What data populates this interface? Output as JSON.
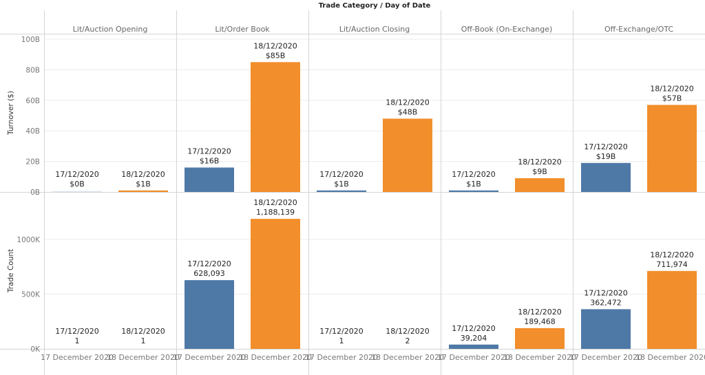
{
  "chart_data": {
    "type": "bar",
    "title": "Trade Category  /  Day of Date",
    "panels": [
      "Lit/Auction Opening",
      "Lit/Order Book",
      "Lit/Auction Closing",
      "Off-Book (On-Exchange)",
      "Off-Exchange/OTC"
    ],
    "categories": [
      "17 December 2020",
      "18 December 2020"
    ],
    "label_dates": [
      "17/12/2020",
      "18/12/2020"
    ],
    "colors": {
      "17 December 2020": "#4e79a7",
      "18 December 2020": "#f28e2b"
    },
    "rows": [
      {
        "measure": "Turnover ($)",
        "ylabel": "Turnover ($)",
        "ylim": [
          0,
          100
        ],
        "unit": "B",
        "ticks": [
          0,
          20,
          40,
          60,
          80,
          100
        ],
        "tick_labels": [
          "0B",
          "20B",
          "40B",
          "60B",
          "80B",
          "100B"
        ],
        "values": [
          [
            0.1,
            1
          ],
          [
            16,
            85
          ],
          [
            1,
            48
          ],
          [
            1,
            9
          ],
          [
            19,
            57
          ]
        ],
        "value_labels": [
          [
            "$0B",
            "$1B"
          ],
          [
            "$16B",
            "$85B"
          ],
          [
            "$1B",
            "$48B"
          ],
          [
            "$1B",
            "$9B"
          ],
          [
            "$19B",
            "$57B"
          ]
        ]
      },
      {
        "measure": "Trade Count",
        "ylabel": "Trade Count",
        "ylim": [
          0,
          1380000
        ],
        "unit": "K",
        "ticks": [
          0,
          500000,
          1000000
        ],
        "tick_labels": [
          "0K",
          "500K",
          "1000K"
        ],
        "values": [
          [
            1,
            1
          ],
          [
            628093,
            1188139
          ],
          [
            1,
            2
          ],
          [
            39204,
            189468
          ],
          [
            362472,
            711974
          ]
        ],
        "value_labels": [
          [
            "1",
            "1"
          ],
          [
            "628,093",
            "1,188,139"
          ],
          [
            "1",
            "2"
          ],
          [
            "39,204",
            "189,468"
          ],
          [
            "362,472",
            "711,974"
          ]
        ]
      }
    ],
    "grid": true,
    "legend": "none"
  }
}
